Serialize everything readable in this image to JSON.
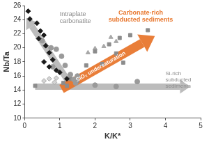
{
  "chart_data": {
    "type": "scatter",
    "x_label": "K/K*",
    "y_label": "Nb/Ta",
    "xlim": [
      0,
      5
    ],
    "xticks": [
      0,
      1,
      2,
      3,
      4,
      5
    ],
    "ylim": [
      10,
      26
    ],
    "yticks": [
      10,
      12,
      14,
      16,
      18,
      20,
      22,
      24,
      26
    ],
    "grid": false,
    "annotations": [
      {
        "text": [
          "Intraplate",
          "carbonatite"
        ],
        "color": "#8c8c8c"
      },
      {
        "text": [
          "Carbonate-rich",
          "subducted sediments"
        ],
        "color": "#e8772e"
      },
      {
        "text": [
          "SiO₂ undersaturation"
        ],
        "color": "#ffffff"
      },
      {
        "text": [
          "Si-rich",
          "subducted",
          "sediments"
        ],
        "color": "#8c8c8c"
      }
    ],
    "series": [
      {
        "color": "#1a1a1a",
        "marker": "diamond",
        "x": [
          0.1,
          0.15,
          0.35,
          0.45,
          0.55,
          0.4,
          0.6,
          0.7,
          0.8,
          0.55,
          0.7,
          0.9,
          1.0,
          1.2
        ],
        "values": [
          25.2,
          24.1,
          23.5,
          22.4,
          21.8,
          21.3,
          20.3,
          19.3,
          18.3,
          18.0,
          17.3,
          16.8,
          16.5,
          15.6
        ]
      },
      {
        "color": "#9a9a9a",
        "marker": "circle",
        "x": [
          0.5,
          0.75,
          0.9,
          1.05,
          0.8,
          1.15,
          1.3,
          1.4,
          1.5,
          1.45,
          2.0,
          2.6,
          3.2
        ],
        "values": [
          21.0,
          20.0,
          19.8,
          18.8,
          17.3,
          17.5,
          16.2,
          15.5,
          16.0,
          15.0,
          14.7,
          14.5,
          15.2
        ]
      },
      {
        "color": "#d4d4d4",
        "marker": "diamond",
        "x": [
          0.55,
          0.7,
          0.85,
          0.9
        ],
        "values": [
          15.3,
          15.6,
          15.1,
          15.7
        ]
      },
      {
        "color": "#8c8c8c",
        "marker": "square",
        "x": [
          0.3,
          1.1,
          1.2,
          1.3,
          1.5,
          1.75,
          2.0,
          2.2,
          2.6,
          2.8,
          3.0,
          3.5,
          2.4,
          2.7
        ],
        "values": [
          14.6,
          15.0,
          14.6,
          15.6,
          15.3,
          17.5,
          19.5,
          17.7,
          19.2,
          17.9,
          21.8,
          22.5,
          20.5,
          21.4
        ]
      },
      {
        "color": "#a8a8a8",
        "marker": "triangle",
        "x": [
          1.8,
          2.0,
          2.25,
          2.45,
          2.6
        ],
        "values": [
          19.3,
          19.9,
          20.2,
          21.5,
          20.9
        ]
      }
    ]
  }
}
